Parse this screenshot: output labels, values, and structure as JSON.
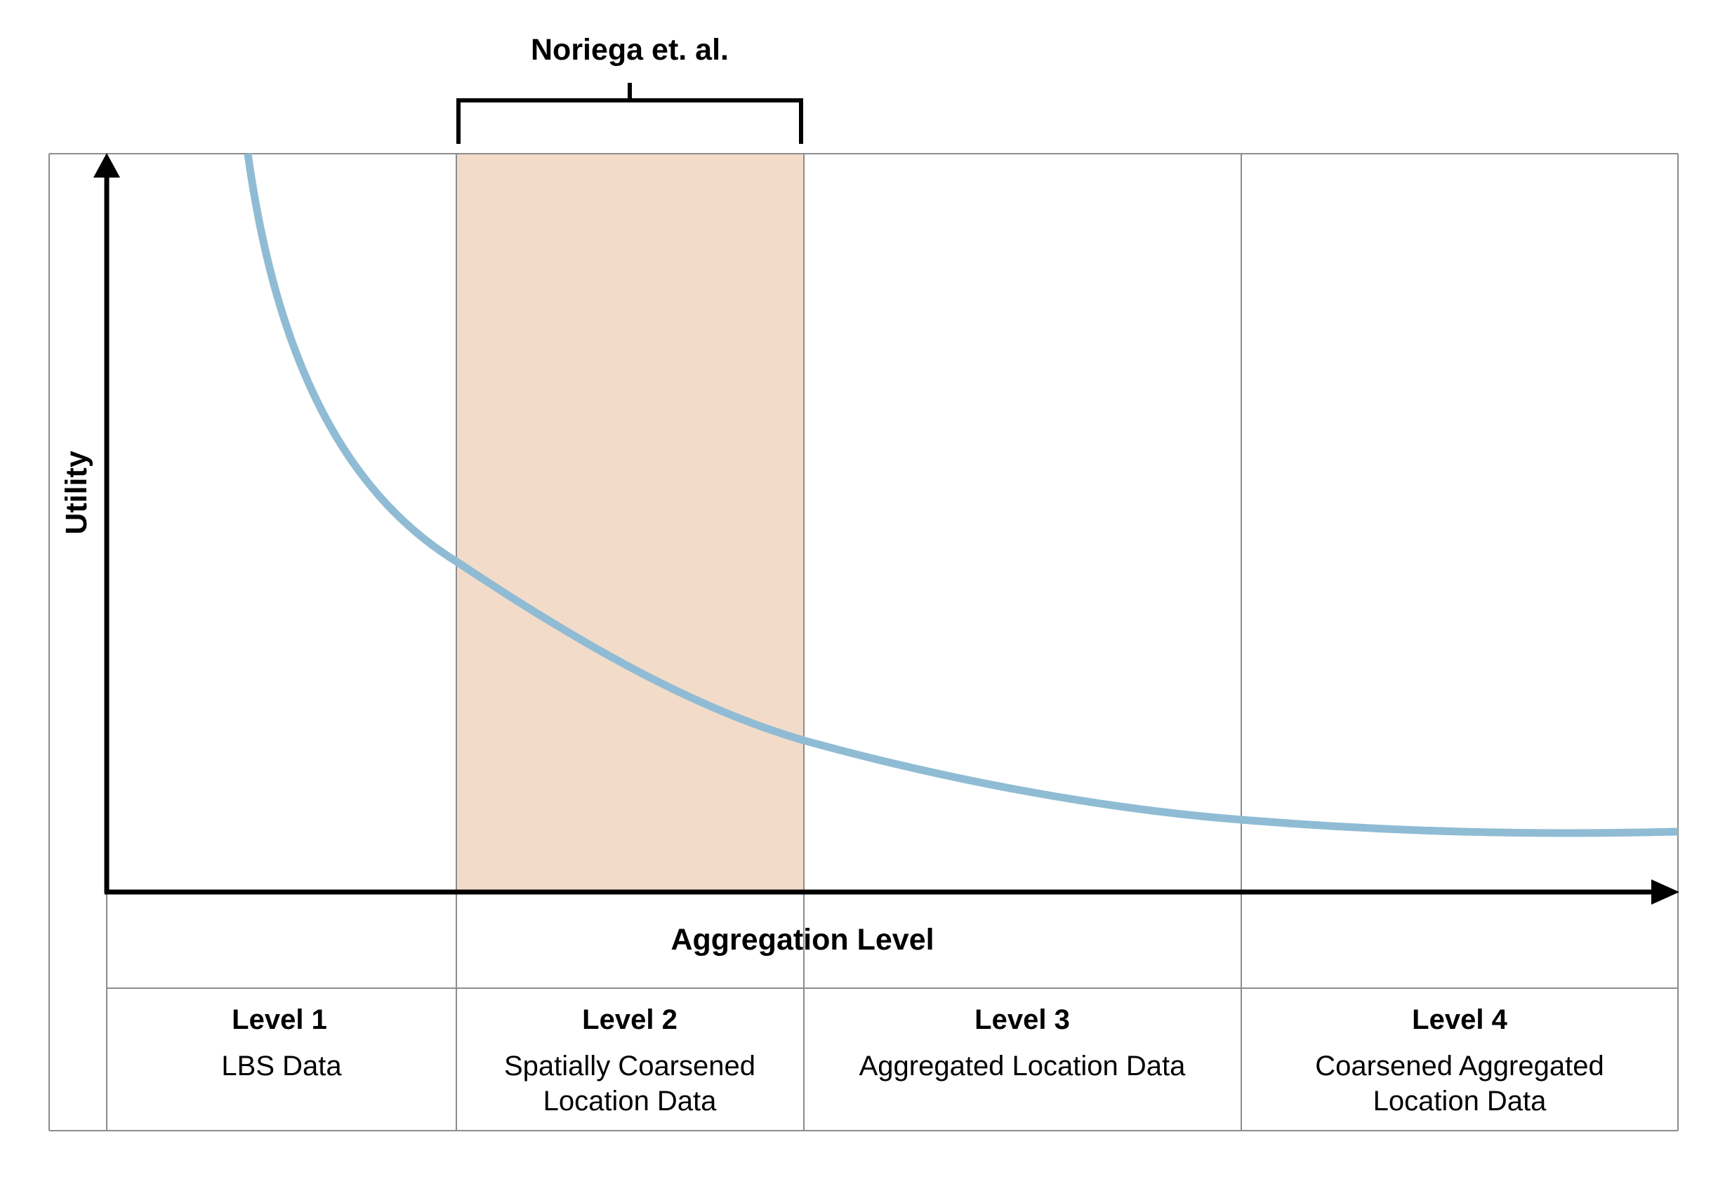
{
  "annotation": {
    "label": "Noriega et. al."
  },
  "axes": {
    "y_label": "Utility",
    "x_label": "Aggregation Level"
  },
  "levels": [
    {
      "title": "Level 1",
      "line1": "LBS Data",
      "line2": ""
    },
    {
      "title": "Level 2",
      "line1": "Spatially Coarsened",
      "line2": "Location Data"
    },
    {
      "title": "Level 3",
      "line1": "Aggregated Location Data",
      "line2": ""
    },
    {
      "title": "Level 4",
      "line1": "Coarsened Aggregated",
      "line2": "Location Data"
    }
  ],
  "colors": {
    "highlight": "#f3dbca",
    "curve": "#8fbcd4",
    "grid": "#8c8c8c",
    "axis": "#000000"
  }
}
